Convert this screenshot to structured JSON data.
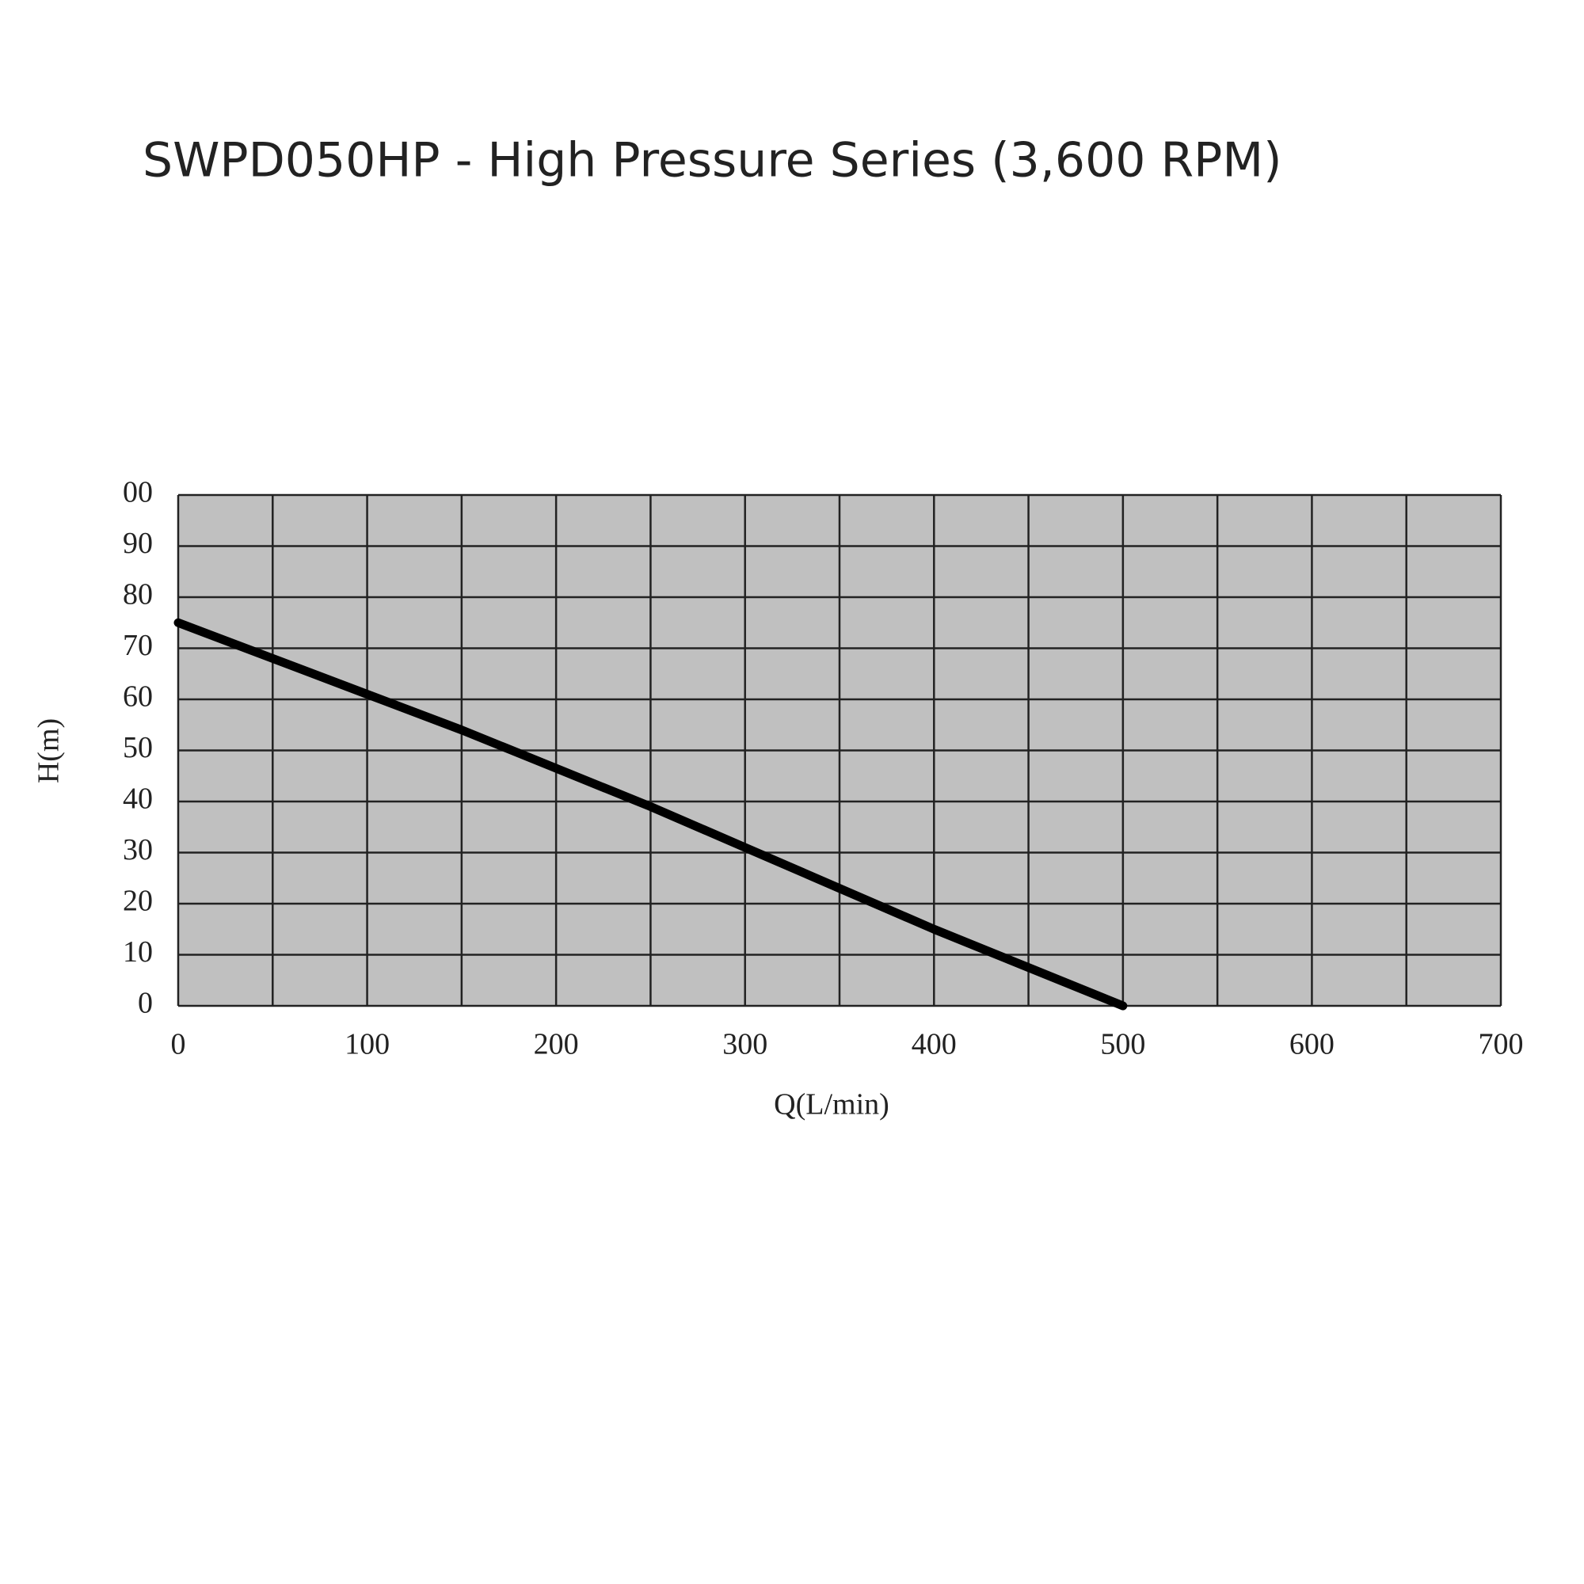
{
  "chart_data": {
    "type": "line",
    "title": "SWPD050HP - High Pressure Series (3,600 RPM)",
    "x_label": "Q(L/min)",
    "y_label": "H(m)",
    "x": [
      0,
      50,
      100,
      150,
      200,
      250,
      300,
      350,
      400,
      450,
      500
    ],
    "series": [
      {
        "name": "H",
        "color": "#000000",
        "values": [
          75,
          68,
          61,
          54,
          46.5,
          39,
          31,
          23,
          15,
          7.5,
          0
        ]
      }
    ],
    "xlim": [
      0,
      700
    ],
    "xticks": [
      0,
      100,
      200,
      300,
      400,
      500,
      600,
      700
    ],
    "xgrid": [
      50,
      150,
      250,
      350,
      450,
      550,
      650
    ],
    "ylim": [
      0,
      100
    ],
    "yticks": [
      0,
      10,
      20,
      30,
      40,
      50,
      60,
      70,
      80,
      90,
      {
        "value": 100,
        "label": "00"
      }
    ],
    "grid": true,
    "plot_background": "#c0c0c0"
  }
}
